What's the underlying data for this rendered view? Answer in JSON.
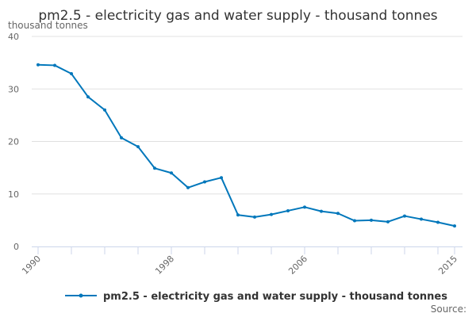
{
  "chart_data": {
    "type": "line",
    "title": "pm2.5 - electricity gas and water supply - thousand tonnes",
    "ylabel": "thousand tonnes",
    "xlabel": "",
    "ylim": [
      0,
      40
    ],
    "yticks": [
      0,
      10,
      20,
      30,
      40
    ],
    "xlim": [
      1990,
      2015
    ],
    "xtick_labels": [
      "1990",
      "1998",
      "2006",
      "2015"
    ],
    "grid": true,
    "legend_position": "bottom",
    "color": "#0077bb",
    "x": [
      1990,
      1991,
      1992,
      1993,
      1994,
      1995,
      1996,
      1997,
      1998,
      1999,
      2000,
      2001,
      2002,
      2003,
      2004,
      2005,
      2006,
      2007,
      2008,
      2009,
      2010,
      2011,
      2012,
      2013,
      2014,
      2015
    ],
    "series": [
      {
        "name": "pm2.5 - electricity gas and water supply - thousand tonnes",
        "values": [
          34.6,
          34.5,
          32.9,
          28.5,
          26.0,
          20.7,
          19.0,
          14.9,
          14.0,
          11.2,
          12.3,
          13.1,
          6.0,
          5.6,
          6.1,
          6.8,
          7.5,
          6.7,
          6.3,
          4.9,
          5.0,
          4.7,
          5.8,
          5.2,
          4.6,
          3.9
        ]
      }
    ]
  },
  "source_label": "Source:"
}
